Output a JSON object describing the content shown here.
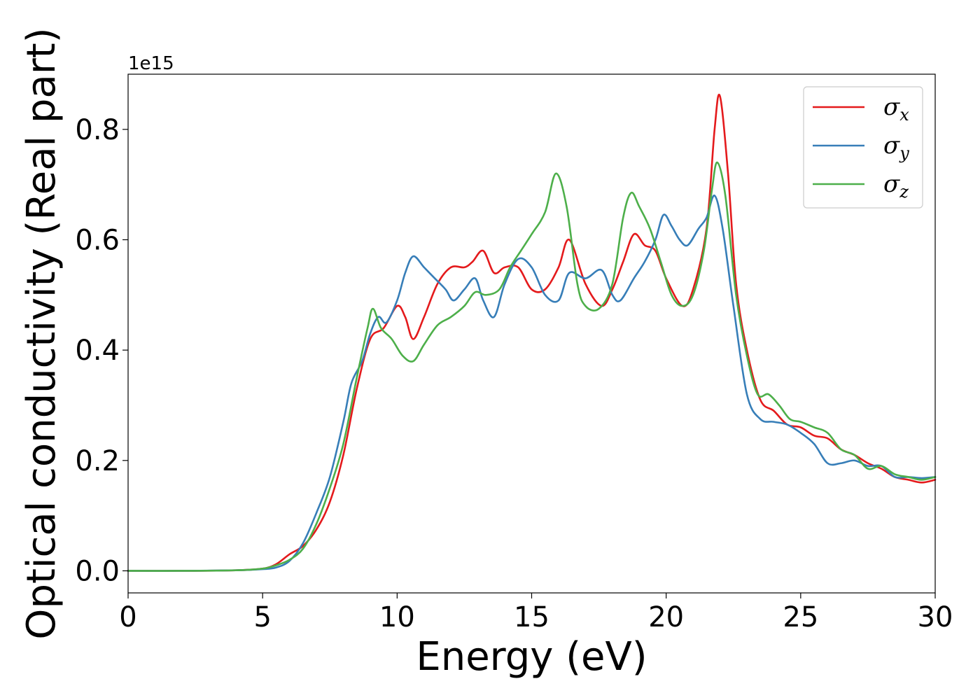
{
  "chart_data": {
    "type": "line",
    "title": "",
    "xlabel": "Energy (eV)",
    "ylabel": "Optical conductivity (Real part)",
    "y_offset_text": "1e15",
    "xlim": [
      0,
      30
    ],
    "ylim": [
      -0.04,
      0.9
    ],
    "x_ticks": [
      "0",
      "5",
      "10",
      "15",
      "20",
      "25",
      "30"
    ],
    "x_tick_values": [
      0,
      5,
      10,
      15,
      20,
      25,
      30
    ],
    "y_ticks": [
      "0.0",
      "0.2",
      "0.4",
      "0.6",
      "0.8"
    ],
    "y_tick_values": [
      0.0,
      0.2,
      0.4,
      0.6,
      0.8
    ],
    "grid": false,
    "legend": {
      "position": "top-right"
    },
    "series": [
      {
        "name": "σx",
        "symbol": "σ",
        "subscript": "x",
        "color": "#e41a1c",
        "points": [
          [
            0,
            0
          ],
          [
            2,
            0
          ],
          [
            4,
            0.001
          ],
          [
            5,
            0.004
          ],
          [
            5.5,
            0.012
          ],
          [
            6,
            0.03
          ],
          [
            6.5,
            0.045
          ],
          [
            7,
            0.075
          ],
          [
            7.5,
            0.125
          ],
          [
            8,
            0.21
          ],
          [
            8.5,
            0.33
          ],
          [
            9,
            0.42
          ],
          [
            9.5,
            0.44
          ],
          [
            10,
            0.48
          ],
          [
            10.3,
            0.46
          ],
          [
            10.6,
            0.42
          ],
          [
            11,
            0.46
          ],
          [
            11.5,
            0.52
          ],
          [
            12,
            0.55
          ],
          [
            12.5,
            0.55
          ],
          [
            12.8,
            0.56
          ],
          [
            13.2,
            0.58
          ],
          [
            13.6,
            0.54
          ],
          [
            14,
            0.55
          ],
          [
            14.5,
            0.55
          ],
          [
            15,
            0.51
          ],
          [
            15.5,
            0.51
          ],
          [
            16,
            0.55
          ],
          [
            16.4,
            0.6
          ],
          [
            17,
            0.52
          ],
          [
            17.6,
            0.48
          ],
          [
            18,
            0.51
          ],
          [
            18.4,
            0.56
          ],
          [
            18.8,
            0.61
          ],
          [
            19.2,
            0.59
          ],
          [
            19.6,
            0.58
          ],
          [
            20,
            0.53
          ],
          [
            20.6,
            0.48
          ],
          [
            21,
            0.51
          ],
          [
            21.5,
            0.62
          ],
          [
            21.8,
            0.8
          ],
          [
            22,
            0.86
          ],
          [
            22.3,
            0.72
          ],
          [
            22.6,
            0.52
          ],
          [
            23,
            0.4
          ],
          [
            23.5,
            0.31
          ],
          [
            24,
            0.29
          ],
          [
            24.5,
            0.265
          ],
          [
            25,
            0.26
          ],
          [
            25.5,
            0.245
          ],
          [
            26,
            0.24
          ],
          [
            26.5,
            0.22
          ],
          [
            27,
            0.21
          ],
          [
            27.5,
            0.195
          ],
          [
            28,
            0.185
          ],
          [
            28.5,
            0.17
          ],
          [
            29,
            0.165
          ],
          [
            29.5,
            0.16
          ],
          [
            30,
            0.165
          ]
        ]
      },
      {
        "name": "σy",
        "symbol": "σ",
        "subscript": "y",
        "color": "#377eb8",
        "points": [
          [
            0,
            0
          ],
          [
            2,
            0
          ],
          [
            4,
            0.001
          ],
          [
            5,
            0.003
          ],
          [
            5.5,
            0.006
          ],
          [
            6,
            0.018
          ],
          [
            6.5,
            0.05
          ],
          [
            7,
            0.105
          ],
          [
            7.5,
            0.17
          ],
          [
            8,
            0.27
          ],
          [
            8.3,
            0.34
          ],
          [
            8.7,
            0.38
          ],
          [
            9,
            0.43
          ],
          [
            9.3,
            0.46
          ],
          [
            9.6,
            0.45
          ],
          [
            10,
            0.49
          ],
          [
            10.3,
            0.54
          ],
          [
            10.6,
            0.57
          ],
          [
            11,
            0.55
          ],
          [
            11.4,
            0.53
          ],
          [
            11.8,
            0.51
          ],
          [
            12.1,
            0.49
          ],
          [
            12.5,
            0.51
          ],
          [
            12.9,
            0.53
          ],
          [
            13.2,
            0.49
          ],
          [
            13.6,
            0.46
          ],
          [
            14,
            0.52
          ],
          [
            14.5,
            0.565
          ],
          [
            15,
            0.55
          ],
          [
            15.5,
            0.5
          ],
          [
            16,
            0.49
          ],
          [
            16.4,
            0.54
          ],
          [
            17,
            0.53
          ],
          [
            17.6,
            0.545
          ],
          [
            18,
            0.5
          ],
          [
            18.3,
            0.49
          ],
          [
            18.8,
            0.53
          ],
          [
            19.2,
            0.56
          ],
          [
            19.6,
            0.6
          ],
          [
            19.9,
            0.645
          ],
          [
            20.2,
            0.625
          ],
          [
            20.5,
            0.6
          ],
          [
            20.8,
            0.59
          ],
          [
            21.2,
            0.62
          ],
          [
            21.5,
            0.64
          ],
          [
            21.8,
            0.68
          ],
          [
            22.1,
            0.62
          ],
          [
            22.5,
            0.48
          ],
          [
            23,
            0.32
          ],
          [
            23.5,
            0.275
          ],
          [
            24,
            0.27
          ],
          [
            24.5,
            0.265
          ],
          [
            25,
            0.25
          ],
          [
            25.5,
            0.23
          ],
          [
            26,
            0.195
          ],
          [
            26.5,
            0.195
          ],
          [
            27,
            0.2
          ],
          [
            27.5,
            0.19
          ],
          [
            28,
            0.19
          ],
          [
            28.5,
            0.17
          ],
          [
            29,
            0.17
          ],
          [
            29.5,
            0.168
          ],
          [
            30,
            0.17
          ]
        ]
      },
      {
        "name": "σz",
        "symbol": "σ",
        "subscript": "z",
        "color": "#4daf4a",
        "points": [
          [
            0,
            0
          ],
          [
            2,
            0
          ],
          [
            4,
            0.001
          ],
          [
            5,
            0.004
          ],
          [
            5.5,
            0.01
          ],
          [
            6,
            0.02
          ],
          [
            6.5,
            0.04
          ],
          [
            7,
            0.085
          ],
          [
            7.5,
            0.15
          ],
          [
            8,
            0.23
          ],
          [
            8.5,
            0.35
          ],
          [
            8.9,
            0.44
          ],
          [
            9.1,
            0.475
          ],
          [
            9.4,
            0.44
          ],
          [
            9.8,
            0.42
          ],
          [
            10.2,
            0.39
          ],
          [
            10.6,
            0.38
          ],
          [
            11,
            0.41
          ],
          [
            11.5,
            0.445
          ],
          [
            12,
            0.46
          ],
          [
            12.5,
            0.48
          ],
          [
            12.9,
            0.505
          ],
          [
            13.3,
            0.5
          ],
          [
            13.8,
            0.51
          ],
          [
            14.2,
            0.55
          ],
          [
            14.6,
            0.58
          ],
          [
            15,
            0.61
          ],
          [
            15.5,
            0.65
          ],
          [
            15.9,
            0.72
          ],
          [
            16.3,
            0.66
          ],
          [
            16.7,
            0.52
          ],
          [
            17,
            0.48
          ],
          [
            17.5,
            0.475
          ],
          [
            18,
            0.52
          ],
          [
            18.4,
            0.64
          ],
          [
            18.7,
            0.685
          ],
          [
            19,
            0.66
          ],
          [
            19.4,
            0.62
          ],
          [
            19.8,
            0.56
          ],
          [
            20.2,
            0.5
          ],
          [
            20.6,
            0.48
          ],
          [
            21,
            0.5
          ],
          [
            21.4,
            0.58
          ],
          [
            21.7,
            0.69
          ],
          [
            21.9,
            0.74
          ],
          [
            22.2,
            0.68
          ],
          [
            22.6,
            0.5
          ],
          [
            23,
            0.39
          ],
          [
            23.4,
            0.32
          ],
          [
            23.8,
            0.32
          ],
          [
            24.2,
            0.3
          ],
          [
            24.6,
            0.275
          ],
          [
            25,
            0.27
          ],
          [
            25.5,
            0.26
          ],
          [
            26,
            0.25
          ],
          [
            26.5,
            0.22
          ],
          [
            27,
            0.21
          ],
          [
            27.5,
            0.185
          ],
          [
            28,
            0.19
          ],
          [
            28.5,
            0.175
          ],
          [
            29,
            0.17
          ],
          [
            29.5,
            0.165
          ],
          [
            30,
            0.17
          ]
        ]
      }
    ]
  }
}
